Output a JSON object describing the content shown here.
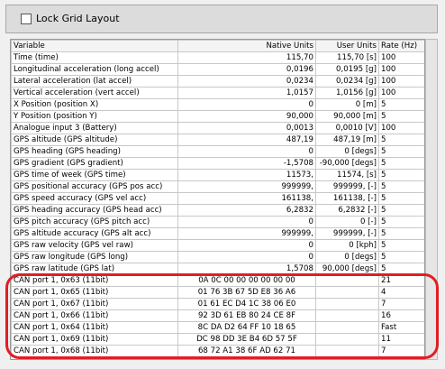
{
  "toolbar": {
    "checkbox_label": "Lock Grid Layout"
  },
  "table": {
    "header": [
      "Variable",
      "Native Units",
      "User Units",
      "Rate (Hz)"
    ],
    "rows": [
      {
        "variable": "Time (time)",
        "native": "115,70",
        "user": "115,70 [s]",
        "rate": "100"
      },
      {
        "variable": "Longitudinal acceleration (long accel)",
        "native": "0,0196",
        "user": "0,0195 [g]",
        "rate": "100"
      },
      {
        "variable": "Lateral acceleration (lat accel)",
        "native": "0,0234",
        "user": "0,0234 [g]",
        "rate": "100"
      },
      {
        "variable": "Vertical acceleration (vert accel)",
        "native": "1,0157",
        "user": "1,0156 [g]",
        "rate": "100"
      },
      {
        "variable": "X Position (position X)",
        "native": "0",
        "user": "0 [m]",
        "rate": "5"
      },
      {
        "variable": "Y Position (position Y)",
        "native": "90,000",
        "user": "90,000 [m]",
        "rate": "5"
      },
      {
        "variable": "Analogue input 3 (Battery)",
        "native": "0,0013",
        "user": "0,0010 [V]",
        "rate": "100"
      },
      {
        "variable": "GPS altitude (GPS altitude)",
        "native": "487,19",
        "user": "487,19 [m]",
        "rate": "5"
      },
      {
        "variable": "GPS heading (GPS heading)",
        "native": "0",
        "user": "0 [degs]",
        "rate": "5"
      },
      {
        "variable": "GPS gradient (GPS gradient)",
        "native": "-1,5708",
        "user": "-90,000 [degs]",
        "rate": "5"
      },
      {
        "variable": "GPS time of week (GPS time)",
        "native": "11573,",
        "user": "11574, [s]",
        "rate": "5"
      },
      {
        "variable": "GPS positional accuracy (GPS pos acc)",
        "native": "999999,",
        "user": "999999, [-]",
        "rate": "5"
      },
      {
        "variable": "GPS speed accuracy (GPS vel acc)",
        "native": "161138,",
        "user": "161138, [-]",
        "rate": "5"
      },
      {
        "variable": "GPS heading accuracy (GPS head acc)",
        "native": "6,2832",
        "user": "6,2832 [-]",
        "rate": "5"
      },
      {
        "variable": "GPS pitch accuracy (GPS pitch acc)",
        "native": "0",
        "user": "0 [-]",
        "rate": "5"
      },
      {
        "variable": "GPS altitude accuracy (GPS alt acc)",
        "native": "999999,",
        "user": "999999, [-]",
        "rate": "5"
      },
      {
        "variable": "GPS raw velocity (GPS vel raw)",
        "native": "0",
        "user": "0 [kph]",
        "rate": "5"
      },
      {
        "variable": "GPS raw longitude (GPS long)",
        "native": "0",
        "user": "0 [degs]",
        "rate": "5"
      },
      {
        "variable": "GPS raw latitude (GPS lat)",
        "native": "1,5708",
        "user": "90,000 [degs]",
        "rate": "5"
      },
      {
        "variable": "CAN port 1, 0x63 (11bit)",
        "native": "0A 0C 00 00 00 00 00 00",
        "rate": "21"
      },
      {
        "variable": "CAN port 1, 0x65 (11bit)",
        "native": "01 76 3B 67 5D E8 36 A6",
        "rate": "4"
      },
      {
        "variable": "CAN port 1, 0x67 (11bit)",
        "native": "01 61 EC D4 1C 38 06 E0",
        "rate": "7"
      },
      {
        "variable": "CAN port 1, 0x66 (11bit)",
        "native": "92 3D 61 EB 80 24 CE 8F",
        "rate": "16"
      },
      {
        "variable": "CAN port 1, 0x64 (11bit)",
        "native": "8C DA D2 64 FF 10 18 65",
        "rate": "Fast"
      },
      {
        "variable": "CAN port 1, 0x69 (11bit)",
        "native": "DC 98 DD 3E B4 6D 57 5F",
        "rate": "11"
      },
      {
        "variable": "CAN port 1, 0x68 (11bit)",
        "native": "68 72 A1 38 6F AD 62 71",
        "rate": "7"
      }
    ]
  }
}
